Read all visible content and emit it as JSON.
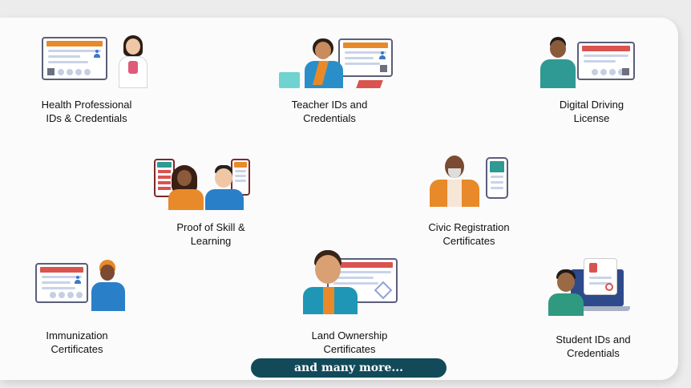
{
  "items": [
    {
      "label_line1": "Health Professional",
      "label_line2": "IDs & Credentials"
    },
    {
      "label_line1": "Teacher IDs and",
      "label_line2": "Credentials"
    },
    {
      "label_line1": "Digital Driving",
      "label_line2": "License"
    },
    {
      "label_line1": "Proof of Skill &",
      "label_line2": "Learning"
    },
    {
      "label_line1": "Civic Registration",
      "label_line2": "Certificates"
    },
    {
      "label_line1": "Immunization",
      "label_line2": "Certificates"
    },
    {
      "label_line1": "Land Ownership",
      "label_line2": "Certificates"
    },
    {
      "label_line1": "Student IDs and",
      "label_line2": "Credentials"
    }
  ],
  "more_label": "and many more...",
  "colors": {
    "orange": "#e8892a",
    "red": "#d9534f",
    "teal": "#2f9a93",
    "navy_button": "#124a5a",
    "frame": "#5b5e7a"
  }
}
